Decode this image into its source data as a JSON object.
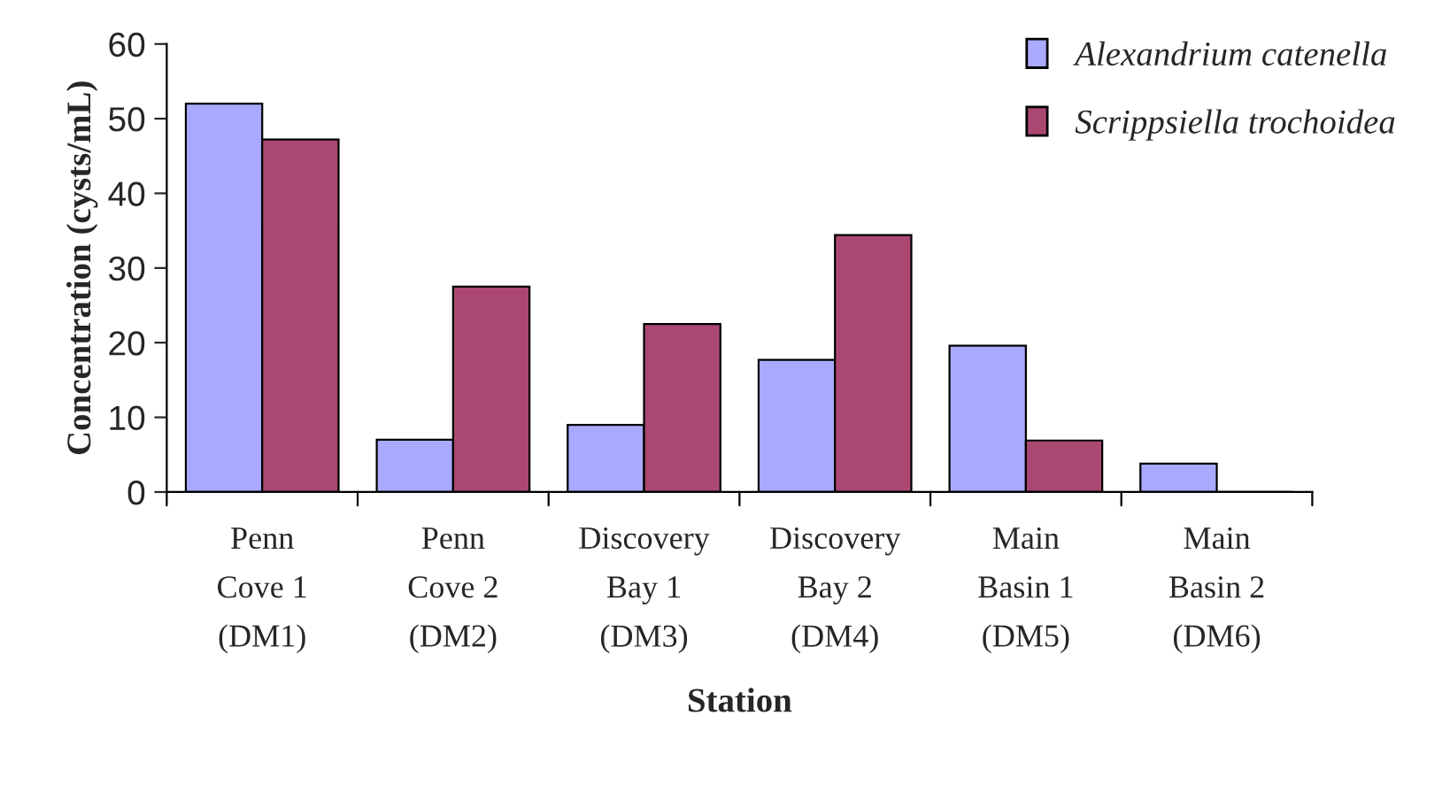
{
  "chart_data": {
    "type": "bar",
    "xlabel": "Station",
    "ylabel": "Concentration (cysts/mL)",
    "categories": [
      "Penn\nCove 1\n(DM1)",
      "Penn\nCove 2\n(DM2)",
      "Discovery\nBay 1\n(DM3)",
      "Discovery\nBay 2\n(DM4)",
      "Main\nBasin 1\n(DM5)",
      "Main\nBasin 2\n(DM6)"
    ],
    "series": [
      {
        "name": "Alexandrium catenella",
        "color": "#a9aaff",
        "values": [
          52,
          7,
          9,
          17.7,
          19.6,
          3.8
        ]
      },
      {
        "name": "Scrippsiella trochoidea",
        "color": "#aa4872",
        "values": [
          47.2,
          27.5,
          22.5,
          34.4,
          6.9,
          0
        ]
      }
    ],
    "ylim": [
      0,
      60
    ],
    "yticks": [
      0,
      10,
      20,
      30,
      40,
      50,
      60
    ],
    "grid": false,
    "legend": "top right"
  }
}
